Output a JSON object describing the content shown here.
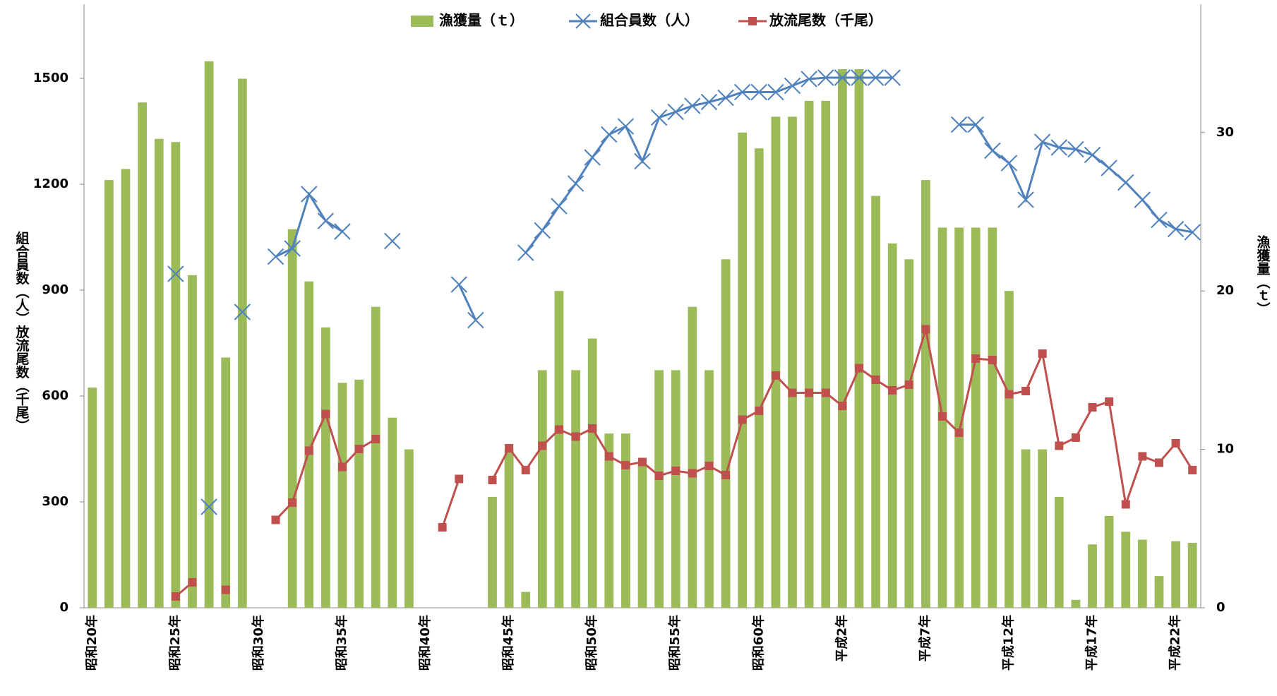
{
  "chart_data": {
    "type": "bar-line",
    "y_label": "組合員数（人）放流尾数（千尾）",
    "y2_label": "漁獲量（ｔ）",
    "categories": [
      "昭和20年",
      null,
      null,
      null,
      null,
      "昭和25年",
      null,
      null,
      null,
      null,
      "昭和30年",
      null,
      null,
      null,
      null,
      "昭和35年",
      null,
      null,
      null,
      null,
      "昭和40年",
      null,
      null,
      null,
      null,
      "昭和45年",
      null,
      null,
      null,
      null,
      "昭和50年",
      null,
      null,
      null,
      null,
      "昭和55年",
      null,
      null,
      null,
      null,
      "昭和60年",
      null,
      null,
      null,
      null,
      "平成2年",
      null,
      null,
      null,
      null,
      "平成7年",
      null,
      null,
      null,
      null,
      "平成12年",
      null,
      null,
      null,
      null,
      "平成17年",
      null,
      null,
      null,
      null,
      "平成22年",
      null
    ],
    "ylim": [
      0,
      1710
    ],
    "yticks": [
      0,
      300,
      600,
      900,
      1200,
      1500
    ],
    "y2lim": [
      0,
      38.1
    ],
    "y2ticks": [
      0,
      10,
      20,
      30
    ],
    "legend": "top",
    "series": [
      {
        "name": "漁獲量（ｔ）",
        "type": "bar",
        "axis": "y2",
        "color": "#9bbb59",
        "values": [
          13.9,
          27.0,
          27.7,
          31.9,
          29.6,
          29.4,
          21.0,
          34.5,
          15.8,
          33.4,
          null,
          null,
          23.9,
          20.6,
          17.7,
          14.2,
          14.4,
          19.0,
          12.0,
          10.0,
          null,
          null,
          null,
          null,
          7.0,
          10.0,
          1.0,
          15.0,
          20.0,
          15.0,
          17.0,
          11.0,
          11.0,
          9.0,
          15.0,
          15.0,
          19.0,
          15.0,
          22.0,
          30.0,
          29.0,
          31.0,
          31.0,
          32.0,
          32.0,
          34.0,
          34.0,
          26.0,
          23.0,
          22.0,
          27.0,
          24.0,
          24.0,
          24.0,
          24.0,
          20.0,
          10.0,
          10.0,
          7.0,
          0.5,
          4.0,
          5.8,
          4.8,
          4.3,
          2.0,
          4.2,
          4.1
        ]
      },
      {
        "name": "組合員数（人）",
        "type": "line",
        "marker": "x",
        "color": "#4f81bd",
        "values": [
          null,
          null,
          null,
          null,
          null,
          946,
          null,
          286,
          null,
          838,
          null,
          995,
          1018,
          1172,
          1096,
          1066,
          null,
          null,
          1039,
          null,
          null,
          null,
          916,
          815,
          null,
          null,
          1006,
          1069,
          1138,
          1202,
          1276,
          1341,
          1364,
          1265,
          1389,
          1405,
          1422,
          1433,
          1445,
          1461,
          1461,
          1461,
          1479,
          1498,
          1502,
          1502,
          1502,
          1502,
          1502,
          null,
          null,
          null,
          1369,
          1369,
          1295,
          1260,
          1156,
          1320,
          1304,
          1299,
          1283,
          1246,
          1205,
          1156,
          1099,
          1073,
          1064
        ]
      },
      {
        "name": "放流尾数（千尾）",
        "type": "line",
        "marker": "square",
        "color": "#c0504d",
        "values": [
          null,
          null,
          null,
          null,
          null,
          32,
          72,
          null,
          51,
          null,
          null,
          249,
          298,
          445,
          549,
          399,
          450,
          478,
          null,
          null,
          null,
          228,
          365,
          null,
          362,
          452,
          390,
          459,
          505,
          485,
          508,
          429,
          404,
          413,
          374,
          388,
          381,
          402,
          376,
          533,
          558,
          658,
          609,
          609,
          609,
          572,
          679,
          646,
          616,
          632,
          789,
          542,
          496,
          706,
          702,
          605,
          614,
          720,
          459,
          482,
          568,
          584,
          293,
          429,
          411,
          466,
          390
        ]
      }
    ]
  }
}
